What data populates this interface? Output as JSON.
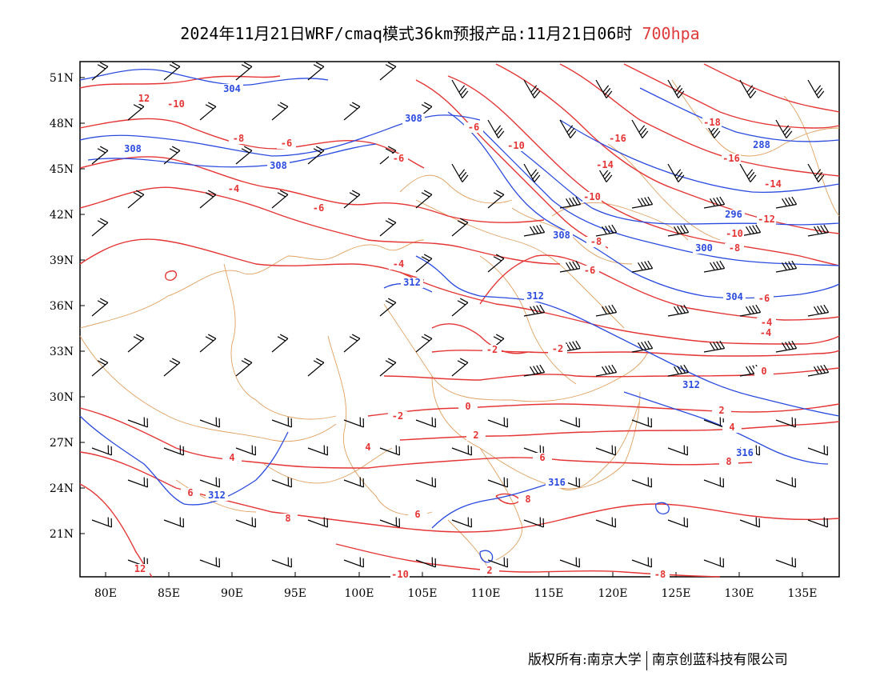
{
  "title": {
    "main": "2024年11月21日WRF/cmaq模式36km预报产品:11月21日06时",
    "level": "700hpa"
  },
  "colors": {
    "temperature": "#e53535",
    "height": "#2b4be0",
    "border": "#e0a060",
    "wind": "#000000"
  },
  "axes": {
    "lat_labels": [
      "51N",
      "48N",
      "45N",
      "42N",
      "39N",
      "36N",
      "33N",
      "30N",
      "27N",
      "24N",
      "21N"
    ],
    "lon_labels": [
      "80E",
      "85E",
      "90E",
      "95E",
      "100E",
      "105E",
      "110E",
      "115E",
      "120E",
      "125E",
      "130E",
      "135E"
    ]
  },
  "contour_labels": {
    "temperature": [
      "12",
      "-10",
      "-8",
      "-6",
      "-6",
      "-6",
      "-4",
      "-6",
      "-10",
      "-16",
      "-14",
      "-10",
      "-8",
      "-18",
      "-16",
      "-14",
      "-12",
      "-10",
      "-8",
      "-6",
      "-4",
      "-4",
      "-2",
      "-2",
      "-6",
      "-4",
      "-2",
      "0",
      "2",
      "0",
      "2",
      "4",
      "4",
      "6",
      "8",
      "8",
      "6",
      "12",
      "6",
      "8",
      "4",
      "2",
      "-8",
      "-10"
    ],
    "height": [
      "304",
      "308",
      "308",
      "308",
      "296",
      "312",
      "312",
      "300",
      "304",
      "308",
      "312",
      "316",
      "316",
      "312",
      "288"
    ]
  },
  "footer": {
    "left": "版权所有:南京大学",
    "right": "南京创蓝科技有限公司"
  }
}
